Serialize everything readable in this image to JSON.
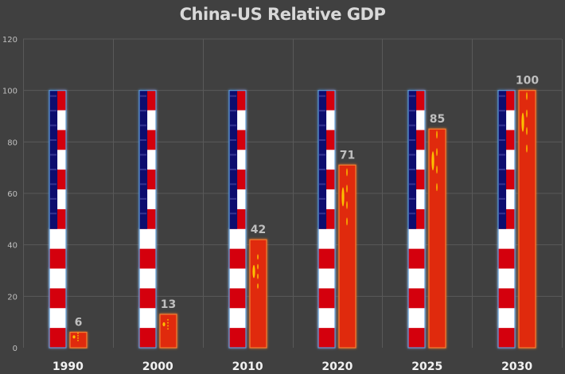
{
  "chart_data": {
    "type": "bar",
    "title": "China-US Relative GDP",
    "xlabel": "",
    "ylabel": "",
    "ylim": [
      0,
      120
    ],
    "yticks": [
      0,
      20,
      40,
      60,
      80,
      100,
      120
    ],
    "grid": true,
    "legend": "none",
    "categories": [
      "1990",
      "2000",
      "2010",
      "2020",
      "2025",
      "2030"
    ],
    "series": [
      {
        "name": "US",
        "fill": "us-flag-pattern",
        "values": [
          100,
          100,
          100,
          100,
          100,
          100
        ],
        "data_labels": false
      },
      {
        "name": "China",
        "fill": "china-flag-pattern",
        "values": [
          6,
          13,
          42,
          71,
          85,
          100
        ],
        "data_labels": true
      }
    ],
    "colors": {
      "background": "#404040",
      "grid": "#595959",
      "us_blue": "#0a0a6e",
      "us_red": "#d40010",
      "us_white": "#ffffff",
      "china_red": "#e02a10",
      "china_star": "#ffd000"
    }
  }
}
